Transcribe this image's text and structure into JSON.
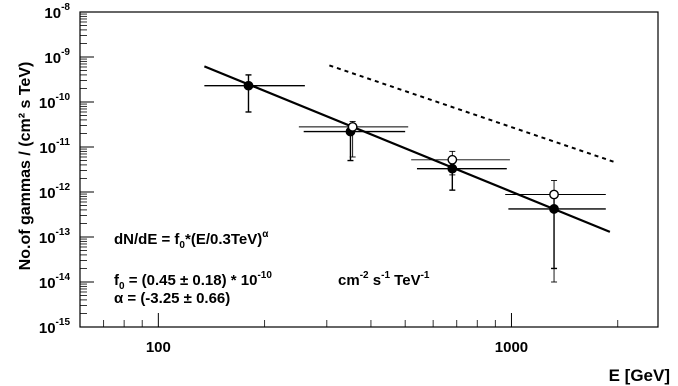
{
  "chart_data": {
    "type": "scatter",
    "x_scale": "log",
    "y_scale": "log",
    "xlim": [
      60,
      2600
    ],
    "ylim": [
      1e-15,
      1e-08
    ],
    "xlabel": "E  [GeV]",
    "ylabel": "No.of gammas / (cm² s TeV)",
    "x_ticks": [
      {
        "value": 100,
        "label": "100"
      },
      {
        "value": 1000,
        "label": "1000"
      }
    ],
    "y_ticks": [
      {
        "value": 1e-08,
        "exp": "-8"
      },
      {
        "value": 1e-09,
        "exp": "-9"
      },
      {
        "value": 1e-10,
        "exp": "-10"
      },
      {
        "value": 1e-11,
        "exp": "-11"
      },
      {
        "value": 1e-12,
        "exp": "-12"
      },
      {
        "value": 1e-13,
        "exp": "-13"
      },
      {
        "value": 1e-14,
        "exp": "-14"
      },
      {
        "value": 1e-15,
        "exp": "-15"
      }
    ],
    "grid": false,
    "series": [
      {
        "marker": "filled-circle",
        "points": [
          {
            "x": 180,
            "y": 2.3e-10,
            "xerr": [
              135,
              260
            ],
            "yerr": [
              6e-11,
              4e-10
            ]
          },
          {
            "x": 350,
            "y": 2.2e-11,
            "xerr": [
              258,
              500
            ],
            "yerr": [
              5e-12,
              3e-11
            ]
          },
          {
            "x": 680,
            "y": 3.3e-12,
            "xerr": [
              540,
              970
            ],
            "yerr": [
              1.1e-12,
              5.5e-12
            ]
          },
          {
            "x": 1320,
            "y": 4.2e-13,
            "xerr": [
              980,
              1850
            ],
            "yerr": [
              2e-14,
              9e-13
            ]
          }
        ]
      },
      {
        "marker": "open-circle",
        "points": [
          {
            "x": 355,
            "y": 2.8e-11,
            "xerr": [
              250,
              510
            ],
            "yerr": [
              6e-12,
              3.7e-11
            ]
          },
          {
            "x": 680,
            "y": 5.2e-12,
            "xerr": [
              520,
              990
            ],
            "yerr": [
              2.4e-12,
              8e-12
            ]
          },
          {
            "x": 1320,
            "y": 8.8e-13,
            "xerr": [
              960,
              1850
            ],
            "yerr": [
              1e-14,
              1.8e-12
            ]
          }
        ]
      }
    ],
    "fit_line": {
      "style": "solid",
      "x": [
        135,
        1900
      ],
      "y": [
        6.2e-10,
        1.3e-13
      ]
    },
    "reference_line": {
      "style": "dashed",
      "x": [
        305,
        1980
      ],
      "y": [
        6.5e-10,
        4.5e-12
      ]
    },
    "annotations": {
      "formula_main": "dN/dE = f",
      "formula_sub": "0",
      "formula_rest": "*(E/0.3TeV)",
      "formula_sup": "α",
      "f0_main": "f",
      "f0_sub": "0",
      "f0_value": " = (0.45 ± 0.18) * 10",
      "f0_exp": "-10",
      "units_cm": "cm",
      "units_cm_exp": "-2",
      "units_s": " s",
      "units_s_exp": "-1",
      "units_tev": " TeV",
      "units_tev_exp": "-1",
      "alpha_line": "α = (-3.25 ± 0.66)"
    }
  }
}
